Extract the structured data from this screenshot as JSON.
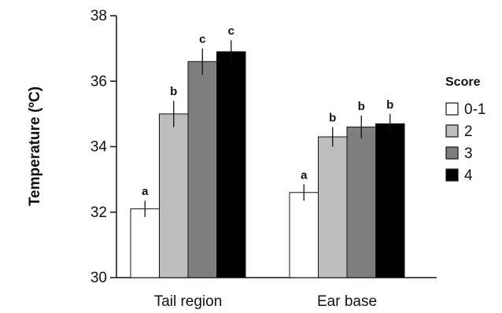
{
  "chart_data": {
    "type": "bar",
    "title": "",
    "xlabel": "",
    "ylabel": "Temperature (ºC)",
    "ylim": [
      30,
      38
    ],
    "yticks": [
      30,
      32,
      34,
      36,
      38
    ],
    "categories": [
      "Tail region",
      "Ear base"
    ],
    "legend_title": "Score",
    "legend_position": "right",
    "grid": false,
    "series": [
      {
        "name": "0-1",
        "color": "#ffffff",
        "values": [
          32.1,
          32.6
        ],
        "errors": [
          0.25,
          0.25
        ],
        "letters": [
          "a",
          "a"
        ]
      },
      {
        "name": "2",
        "color": "#bdbdbd",
        "values": [
          35.0,
          34.3
        ],
        "errors": [
          0.4,
          0.3
        ],
        "letters": [
          "b",
          "b"
        ]
      },
      {
        "name": "3",
        "color": "#7f7f7f",
        "values": [
          36.6,
          34.6
        ],
        "errors": [
          0.4,
          0.35
        ],
        "letters": [
          "c",
          "b"
        ]
      },
      {
        "name": "4",
        "color": "#000000",
        "values": [
          36.9,
          34.7
        ],
        "errors": [
          0.35,
          0.3
        ],
        "letters": [
          "c",
          "b"
        ]
      }
    ]
  }
}
